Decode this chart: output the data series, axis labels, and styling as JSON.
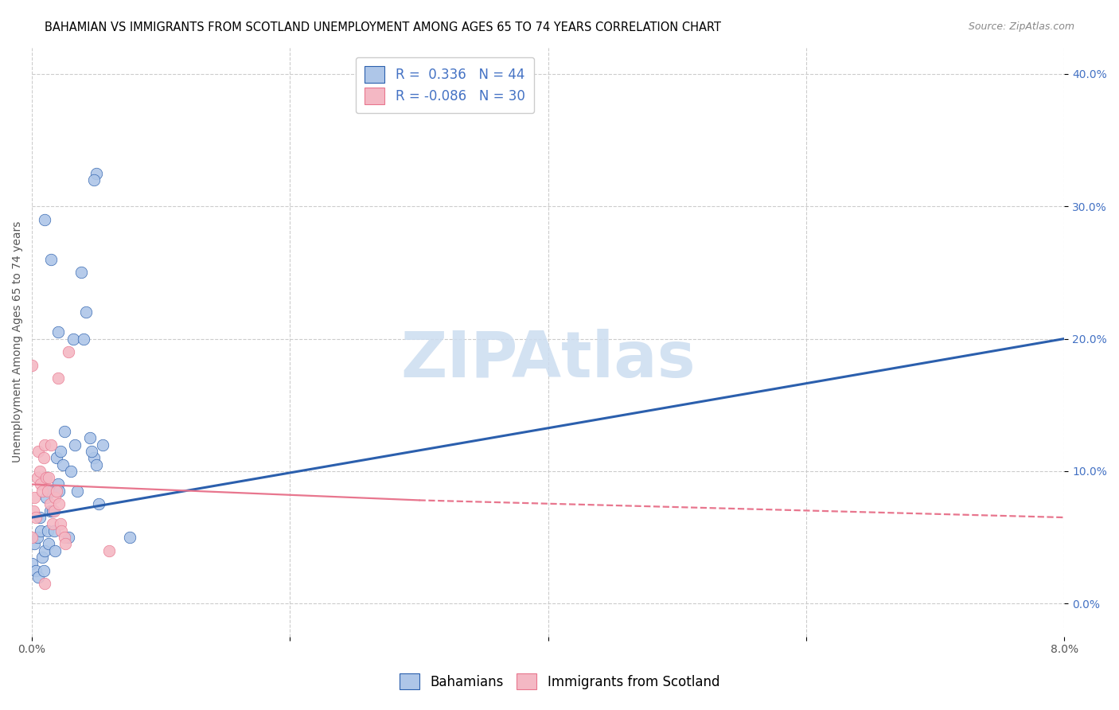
{
  "title": "BAHAMIAN VS IMMIGRANTS FROM SCOTLAND UNEMPLOYMENT AMONG AGES 65 TO 74 YEARS CORRELATION CHART",
  "source": "Source: ZipAtlas.com",
  "ylabel": "Unemployment Among Ages 65 to 74 years",
  "legend_label1": "Bahamians",
  "legend_label2": "Immigrants from Scotland",
  "R1": 0.336,
  "N1": 44,
  "R2": -0.086,
  "N2": 30,
  "color_blue_fill": "#aec6e8",
  "color_blue_edge": "#2b5fad",
  "color_pink_fill": "#f4b8c4",
  "color_pink_edge": "#e8768e",
  "color_pink_line": "#e8768e",
  "x_min": 0.0,
  "x_max": 8.0,
  "y_min": -2.5,
  "y_max": 42.0,
  "y_ticks": [
    0.0,
    10.0,
    20.0,
    30.0,
    40.0
  ],
  "x_grid_ticks": [
    0.0,
    2.0,
    4.0,
    6.0,
    8.0
  ],
  "blue_line": [
    [
      0.0,
      6.5
    ],
    [
      8.0,
      20.0
    ]
  ],
  "pink_line_solid": [
    [
      0.0,
      9.0
    ],
    [
      3.0,
      7.8
    ]
  ],
  "pink_line_dash": [
    [
      3.0,
      7.8
    ],
    [
      8.0,
      6.5
    ]
  ],
  "blue_pts_x": [
    0.0,
    0.02,
    0.03,
    0.04,
    0.05,
    0.06,
    0.07,
    0.08,
    0.09,
    0.1,
    0.11,
    0.12,
    0.13,
    0.14,
    0.15,
    0.16,
    0.17,
    0.18,
    0.19,
    0.2,
    0.21,
    0.22,
    0.24,
    0.25,
    0.28,
    0.3,
    0.32,
    0.33,
    0.35,
    0.38,
    0.4,
    0.42,
    0.45,
    0.48,
    0.5,
    0.52,
    0.55,
    0.76,
    0.1,
    0.15,
    0.2,
    0.46,
    0.48,
    0.5
  ],
  "blue_pts_y": [
    3.0,
    4.5,
    2.5,
    5.0,
    2.0,
    6.5,
    5.5,
    3.5,
    2.5,
    4.0,
    8.0,
    5.5,
    4.5,
    7.0,
    8.5,
    7.0,
    5.5,
    4.0,
    11.0,
    9.0,
    8.5,
    11.5,
    10.5,
    13.0,
    5.0,
    10.0,
    20.0,
    12.0,
    8.5,
    25.0,
    20.0,
    22.0,
    12.5,
    11.0,
    32.5,
    7.5,
    12.0,
    5.0,
    29.0,
    26.0,
    20.5,
    11.5,
    32.0,
    10.5
  ],
  "pink_pts_x": [
    0.0,
    0.01,
    0.02,
    0.03,
    0.04,
    0.05,
    0.06,
    0.07,
    0.08,
    0.09,
    0.1,
    0.11,
    0.12,
    0.13,
    0.14,
    0.15,
    0.16,
    0.17,
    0.18,
    0.19,
    0.2,
    0.21,
    0.22,
    0.23,
    0.25,
    0.26,
    0.28,
    0.0,
    0.6,
    0.1
  ],
  "pink_pts_y": [
    5.0,
    7.0,
    8.0,
    6.5,
    9.5,
    11.5,
    10.0,
    9.0,
    8.5,
    11.0,
    12.0,
    9.5,
    8.5,
    9.5,
    7.5,
    12.0,
    6.0,
    7.0,
    8.0,
    8.5,
    17.0,
    7.5,
    6.0,
    5.5,
    5.0,
    4.5,
    19.0,
    18.0,
    4.0,
    1.5
  ],
  "watermark_text": "ZIPAtlas",
  "watermark_color": "#ccddf0",
  "title_fontsize": 10.5,
  "source_fontsize": 9,
  "axis_label_fontsize": 10,
  "tick_fontsize": 10,
  "legend_fontsize": 12,
  "scatter_size": 110
}
